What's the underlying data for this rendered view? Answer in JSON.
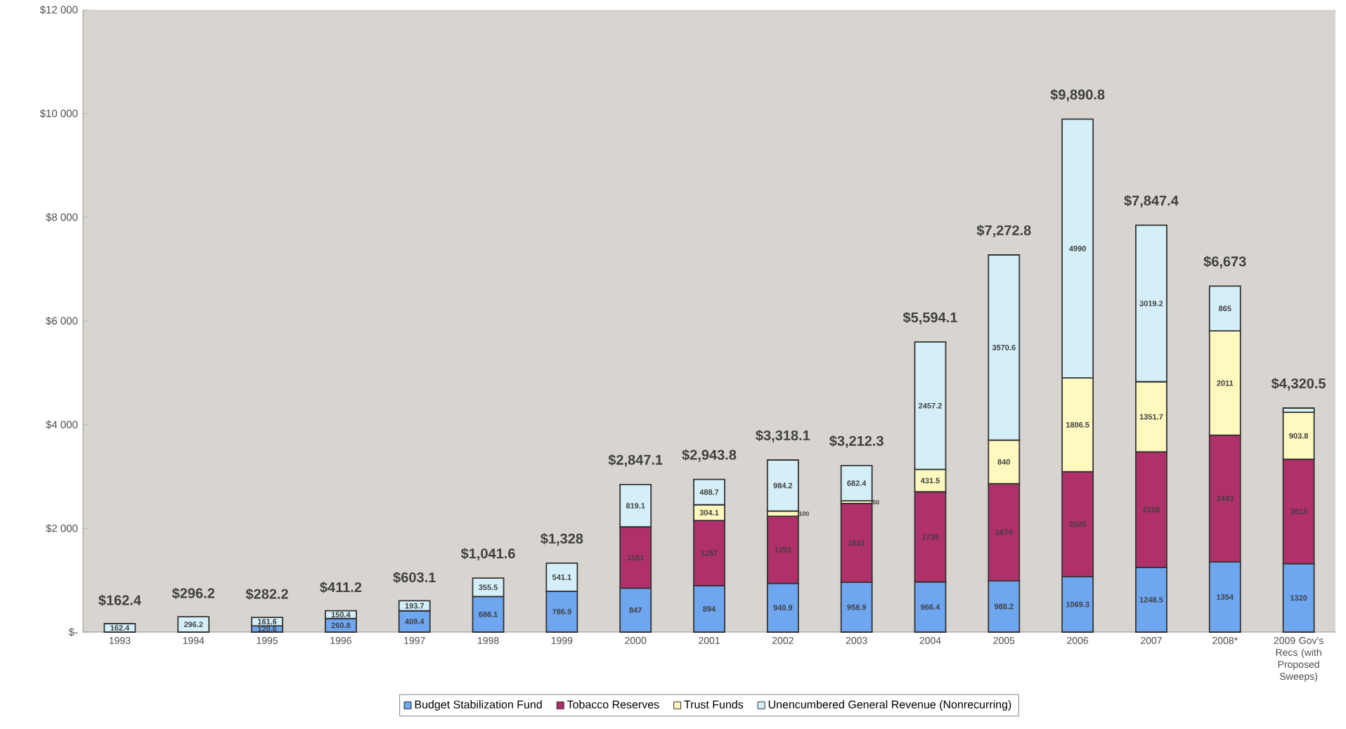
{
  "chart_data": {
    "type": "bar",
    "stacked": true,
    "categories": [
      "1993",
      "1994",
      "1995",
      "1996",
      "1997",
      "1998",
      "1999",
      "2000",
      "2001",
      "2002",
      "2003",
      "2004",
      "2005",
      "2006",
      "2007",
      "2008*",
      "2009 Gov's Recs (with Proposed Sweeps)"
    ],
    "series": [
      {
        "name": "Budget Stabilization Fund",
        "color": "#6ea6f0",
        "values": [
          0,
          0,
          120.6,
          260.8,
          409.4,
          686.1,
          786.9,
          847,
          894,
          940.9,
          958.9,
          966.4,
          988.2,
          1069.3,
          1248.5,
          1354,
          1320
        ],
        "value_labels": [
          null,
          null,
          "120.6",
          "260.8",
          "409.4",
          "686.1",
          "786.9",
          "847",
          "894",
          "940.9",
          "958.9",
          "966.4",
          "988.2",
          "1069.3",
          "1248.5",
          "1354",
          "1320"
        ]
      },
      {
        "name": "Tobacco Reserves",
        "color": "#b0306a",
        "values": [
          0,
          0,
          0,
          0,
          0,
          0,
          0,
          1181,
          1257,
          1293,
          1521,
          1739,
          1874,
          2025,
          2228,
          2443,
          2013
        ],
        "value_labels": [
          null,
          null,
          null,
          null,
          null,
          null,
          null,
          "1181",
          "1257",
          "1293",
          "1521",
          "1739",
          "1874",
          "2025",
          "2228",
          "2443",
          "2013"
        ]
      },
      {
        "name": "Trust Funds",
        "color": "#fff8bf",
        "values": [
          0,
          0,
          0,
          0,
          0,
          0,
          0,
          0,
          304.1,
          100,
          50,
          431.5,
          840,
          1806.5,
          1351.7,
          2011,
          903.8
        ],
        "value_labels": [
          null,
          null,
          null,
          null,
          null,
          null,
          null,
          null,
          "304.1",
          "100",
          "50",
          "431.5",
          "840",
          "1806.5",
          "1351.7",
          "2011",
          "903.8"
        ]
      },
      {
        "name": "Unencumbered General Revenue (Nonrecurring)",
        "color": "#d4eff8",
        "values": [
          162.4,
          296.2,
          161.6,
          150.4,
          193.7,
          355.5,
          541.1,
          819.1,
          488.7,
          984.2,
          682.4,
          2457.2,
          3570.6,
          4990,
          3019.2,
          865,
          83.7
        ],
        "value_labels": [
          "162.4",
          "296.2",
          "161.6",
          "150.4",
          "193.7",
          "355.5",
          "541.1",
          "819.1",
          "488.7",
          "984.2",
          "682.4",
          "2457.2",
          "3570.6",
          "4990",
          "3019.2",
          "865",
          null
        ]
      }
    ],
    "totals": [
      "$162.4",
      "$296.2",
      "$282.2",
      "$411.2",
      "$603.1",
      "$1,041.6",
      "$1,328",
      "$2,847.1",
      "$2,943.8",
      "$3,318.1",
      "$3,212.3",
      "$5,594.1",
      "$7,272.8",
      "$9,890.8",
      "$7,847.4",
      "$6,673",
      "$4,320.5"
    ],
    "ylim": [
      0,
      12000
    ],
    "yticks": [
      {
        "value": 0,
        "label": "$-"
      },
      {
        "value": 2000,
        "label": "$2 000"
      },
      {
        "value": 4000,
        "label": "$4 000"
      },
      {
        "value": 6000,
        "label": "$6 000"
      },
      {
        "value": 8000,
        "label": "$8 000"
      },
      {
        "value": 10000,
        "label": "$10 000"
      },
      {
        "value": 12000,
        "label": "$12 000"
      }
    ],
    "legend": "bottom"
  }
}
